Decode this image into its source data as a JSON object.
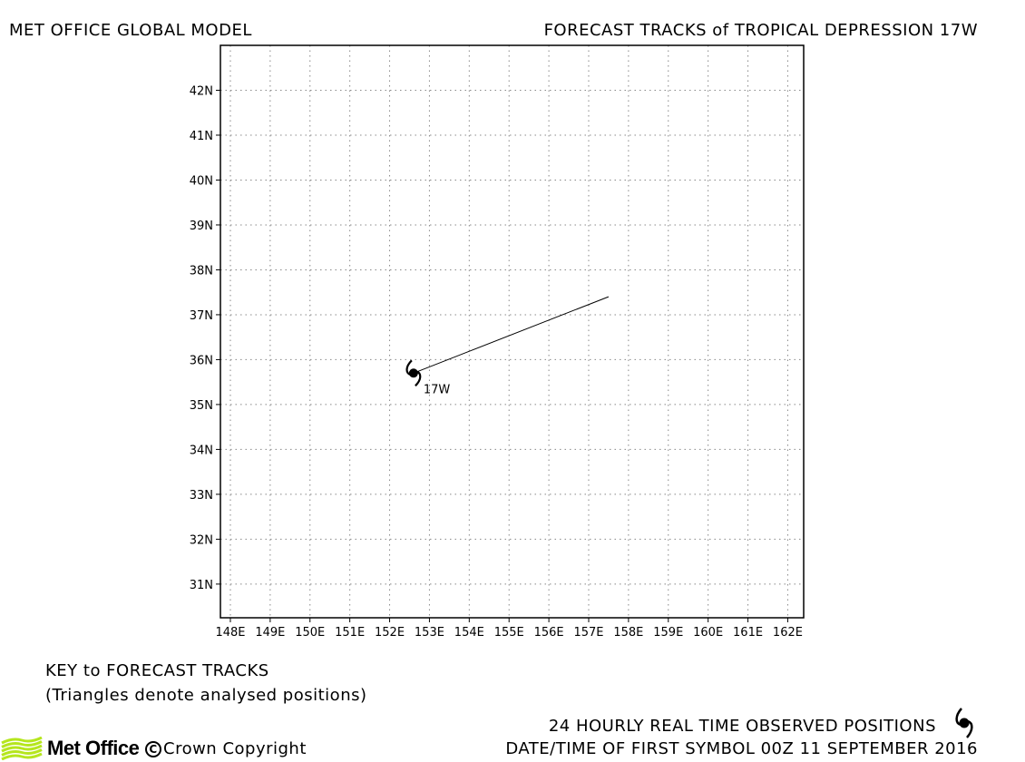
{
  "header": {
    "left_title": "MET OFFICE GLOBAL MODEL",
    "right_title": "FORECAST TRACKS of TROPICAL DEPRESSION 17W"
  },
  "map": {
    "lon_range": [
      147.75,
      162.4
    ],
    "lat_range": [
      30.25,
      43.0
    ],
    "lon_ticks": [
      148,
      149,
      150,
      151,
      152,
      153,
      154,
      155,
      156,
      157,
      158,
      159,
      160,
      161,
      162
    ],
    "lat_ticks": [
      31,
      32,
      33,
      34,
      35,
      36,
      37,
      38,
      39,
      40,
      41,
      42
    ],
    "lon_tick_labels": [
      "148E",
      "149E",
      "150E",
      "151E",
      "152E",
      "153E",
      "154E",
      "155E",
      "156E",
      "157E",
      "158E",
      "159E",
      "160E",
      "161E",
      "162E"
    ],
    "lat_tick_labels": [
      "31N",
      "32N",
      "33N",
      "34N",
      "35N",
      "36N",
      "37N",
      "38N",
      "39N",
      "40N",
      "41N",
      "42N"
    ],
    "grid": true,
    "storm": {
      "name": "17W",
      "observed_position": {
        "lon": 152.6,
        "lat": 35.7
      },
      "forecast_track": [
        {
          "lon": 152.6,
          "lat": 35.7
        },
        {
          "lon": 157.5,
          "lat": 37.4
        }
      ]
    }
  },
  "legend": {
    "key_title": "KEY to FORECAST TRACKS",
    "key_subtitle": "(Triangles denote analysed positions)",
    "observed_label": "24 HOURLY REAL TIME OBSERVED POSITIONS",
    "observed_symbol": "tropical-storm-symbol",
    "datetime_label": "DATE/TIME OF FIRST SYMBOL 00Z 11 SEPTEMBER 2016"
  },
  "footer": {
    "logo_text": "Met Office",
    "copyright_text": "Crown Copyright",
    "logo_color": "#b5e61d"
  }
}
